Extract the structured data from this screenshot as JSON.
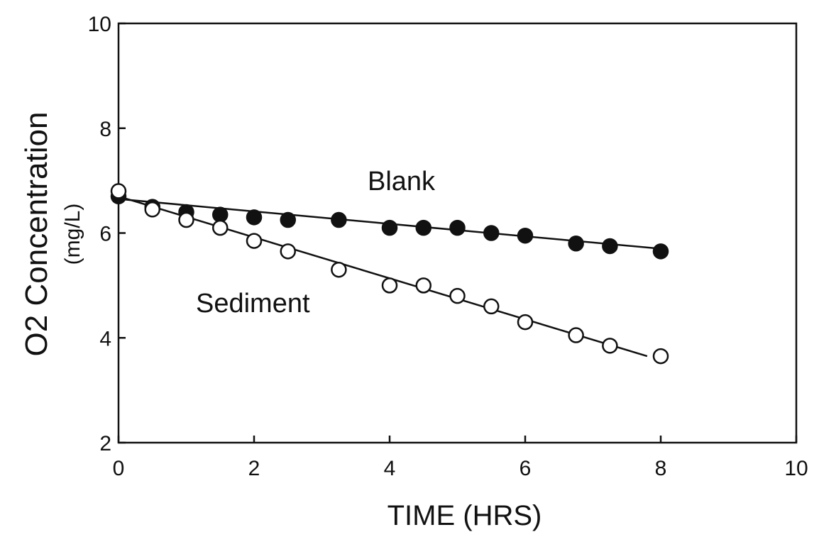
{
  "chart_data": {
    "type": "scatter",
    "title": "",
    "xlabel": "TIME (HRS)",
    "ylabel": "O2 Concentration",
    "ylabel_unit": "(mg/L)",
    "xlim": [
      0,
      10
    ],
    "ylim": [
      2,
      10
    ],
    "xticks": [
      "0",
      "2",
      "4",
      "6",
      "8",
      "10"
    ],
    "yticks": [
      "2",
      "4",
      "6",
      "8",
      "10"
    ],
    "grid": false,
    "legend": "none",
    "series": [
      {
        "name": "Blank",
        "marker": "filled-circle",
        "color": "#111111",
        "x": [
          0.0,
          0.5,
          1.0,
          1.5,
          2.0,
          2.5,
          3.25,
          4.0,
          4.5,
          5.0,
          5.5,
          6.0,
          6.75,
          7.25,
          8.0
        ],
        "y": [
          6.7,
          6.5,
          6.4,
          6.35,
          6.3,
          6.25,
          6.25,
          6.1,
          6.1,
          6.1,
          6.0,
          5.95,
          5.8,
          5.75,
          5.65
        ],
        "fit": {
          "x": [
            0.0,
            8.0
          ],
          "y": [
            6.65,
            5.7
          ]
        }
      },
      {
        "name": "Sediment",
        "marker": "open-circle",
        "color": "#111111",
        "x": [
          0.0,
          0.5,
          1.0,
          1.5,
          2.0,
          2.5,
          3.25,
          4.0,
          4.5,
          5.0,
          5.5,
          6.0,
          6.75,
          7.25,
          8.0
        ],
        "y": [
          6.8,
          6.45,
          6.25,
          6.1,
          5.85,
          5.65,
          5.3,
          5.0,
          5.0,
          4.8,
          4.6,
          4.3,
          4.05,
          3.85,
          3.65
        ],
        "fit": {
          "x": [
            0.0,
            7.8
          ],
          "y": [
            6.7,
            3.65
          ]
        }
      }
    ]
  }
}
